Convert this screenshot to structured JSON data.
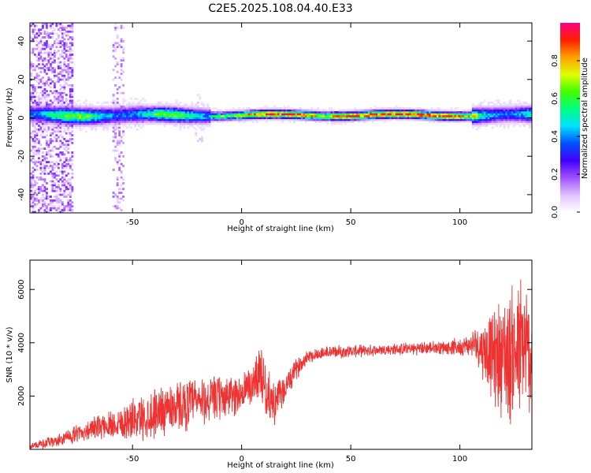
{
  "title": "C2E5.2025.108.04.40.E33",
  "chart_data": [
    {
      "type": "heatmap",
      "xlabel": "Height of straight line (km)",
      "ylabel": "Frequency (Hz)",
      "xlim": [
        -97,
        133
      ],
      "ylim": [
        -49.5,
        49.5
      ],
      "x_ticks": [
        -50,
        0,
        50,
        100
      ],
      "y_ticks": [
        -40,
        -20,
        0,
        20,
        40
      ],
      "colorbar": {
        "label": "Normalized spectral amplitude",
        "range": [
          0,
          1
        ],
        "ticks": [
          "0.0",
          "0.2",
          "0.4",
          "0.6",
          "0.8"
        ],
        "colors": [
          "#ffffff",
          "#e0c0ff",
          "#a050ff",
          "#4000ff",
          "#0050ff",
          "#00e0ff",
          "#00ff80",
          "#40ff00",
          "#e0ff00",
          "#ffa000",
          "#ff2000",
          "#ff0080"
        ]
      },
      "grid": false
    },
    {
      "type": "line",
      "xlabel": "Height of straight line (km)",
      "ylabel": "SNR (10 * v/v)",
      "xlim": [
        -97,
        133
      ],
      "ylim": [
        0,
        7100
      ],
      "x_ticks": [
        -50,
        0,
        50,
        100
      ],
      "y_ticks": [
        2000,
        4000,
        6000
      ],
      "color": "#ee3333",
      "trend": [
        {
          "x": -97,
          "y": 120
        },
        {
          "x": -85,
          "y": 300
        },
        {
          "x": -75,
          "y": 600
        },
        {
          "x": -65,
          "y": 850
        },
        {
          "x": -55,
          "y": 1050
        },
        {
          "x": -45,
          "y": 1200
        },
        {
          "x": -35,
          "y": 1550
        },
        {
          "x": -25,
          "y": 1700
        },
        {
          "x": -15,
          "y": 1850
        },
        {
          "x": -5,
          "y": 2000
        },
        {
          "x": 0,
          "y": 2100
        },
        {
          "x": 5,
          "y": 2400
        },
        {
          "x": 8,
          "y": 3100
        },
        {
          "x": 12,
          "y": 2000
        },
        {
          "x": 15,
          "y": 1700
        },
        {
          "x": 20,
          "y": 2300
        },
        {
          "x": 25,
          "y": 3000
        },
        {
          "x": 30,
          "y": 3500
        },
        {
          "x": 40,
          "y": 3650
        },
        {
          "x": 55,
          "y": 3700
        },
        {
          "x": 70,
          "y": 3750
        },
        {
          "x": 85,
          "y": 3800
        },
        {
          "x": 100,
          "y": 3850
        },
        {
          "x": 108,
          "y": 3950
        },
        {
          "x": 115,
          "y": 3500
        },
        {
          "x": 125,
          "y": 3600
        },
        {
          "x": 133,
          "y": 3700
        }
      ],
      "noise_amplitude": [
        {
          "x": -97,
          "y": 120
        },
        {
          "x": -70,
          "y": 350
        },
        {
          "x": -40,
          "y": 900
        },
        {
          "x": -20,
          "y": 900
        },
        {
          "x": 0,
          "y": 700
        },
        {
          "x": 10,
          "y": 1000
        },
        {
          "x": 20,
          "y": 500
        },
        {
          "x": 30,
          "y": 250
        },
        {
          "x": 60,
          "y": 200
        },
        {
          "x": 95,
          "y": 250
        },
        {
          "x": 105,
          "y": 400
        },
        {
          "x": 112,
          "y": 1200
        },
        {
          "x": 120,
          "y": 2200
        },
        {
          "x": 127,
          "y": 2800
        },
        {
          "x": 133,
          "y": 2200
        }
      ]
    }
  ]
}
